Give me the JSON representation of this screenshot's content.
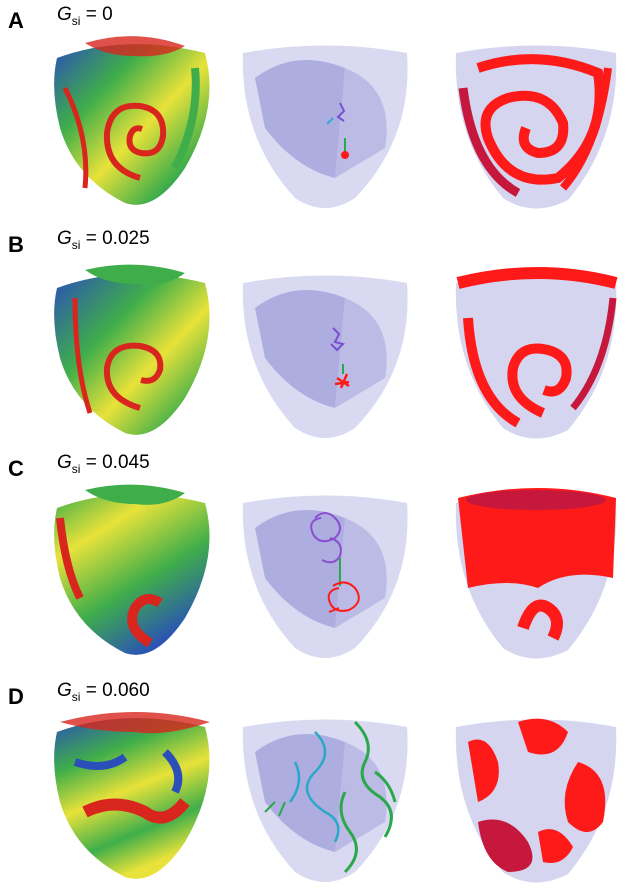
{
  "panels": [
    {
      "letter": "A",
      "g_symbol": "G",
      "g_sub": "si",
      "g_value": "= 0"
    },
    {
      "letter": "B",
      "g_symbol": "G",
      "g_sub": "si",
      "g_value": "= 0.025"
    },
    {
      "letter": "C",
      "g_symbol": "G",
      "g_sub": "si",
      "g_value": "= 0.045"
    },
    {
      "letter": "D",
      "g_symbol": "G",
      "g_sub": "si",
      "g_value": "= 0.060"
    }
  ],
  "colors": {
    "surface_blue": "#2a4fb8",
    "surface_green": "#3fae4a",
    "surface_yellow": "#e8e23a",
    "surface_red": "#d8261e",
    "ghost_heart": "#b9b9e6",
    "filament_red": "#ff1a1a"
  }
}
